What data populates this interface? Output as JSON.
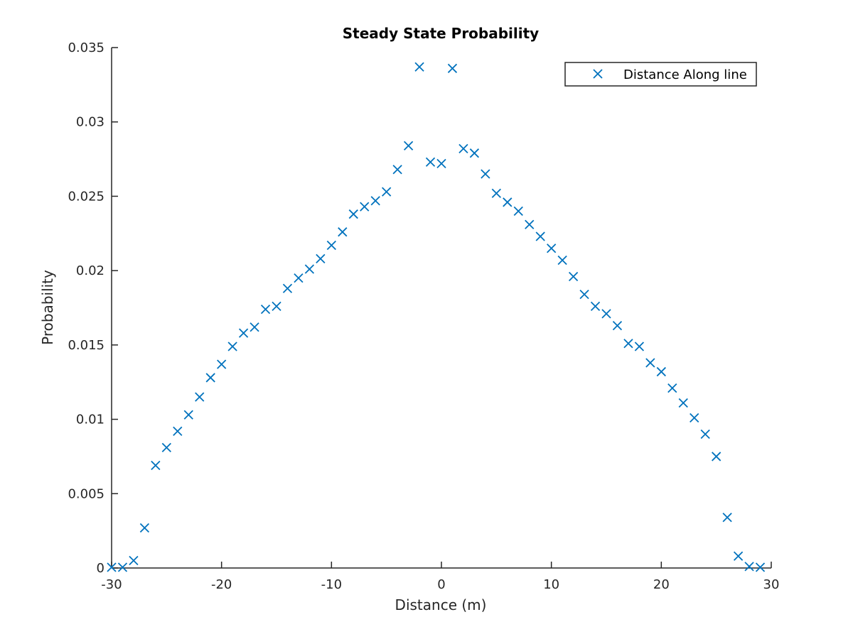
{
  "chart_data": {
    "type": "scatter",
    "title": "Steady State Probability",
    "xlabel": "Distance (m)",
    "ylabel": "Probability",
    "xlim": [
      -30,
      30
    ],
    "ylim": [
      0,
      0.035
    ],
    "xticks": [
      -30,
      -20,
      -10,
      0,
      10,
      20,
      30
    ],
    "xtick_labels": [
      "-30",
      "-20",
      "-10",
      "0",
      "10",
      "20",
      "30"
    ],
    "yticks": [
      0,
      0.005,
      0.01,
      0.015,
      0.02,
      0.025,
      0.03,
      0.035
    ],
    "ytick_labels": [
      "0",
      "0.005",
      "0.01",
      "0.015",
      "0.02",
      "0.025",
      "0.03",
      "0.035"
    ],
    "grid": false,
    "legend_position": "top-right",
    "marker": "x",
    "color": "#0072BD",
    "series": [
      {
        "name": "Distance Along line",
        "x": [
          -30,
          -29,
          -28,
          -27,
          -26,
          -25,
          -24,
          -23,
          -22,
          -21,
          -20,
          -19,
          -18,
          -17,
          -16,
          -15,
          -14,
          -13,
          -12,
          -11,
          -10,
          -9,
          -8,
          -7,
          -6,
          -5,
          -4,
          -3,
          -2,
          -1,
          0,
          1,
          2,
          3,
          4,
          5,
          6,
          7,
          8,
          9,
          10,
          11,
          12,
          13,
          14,
          15,
          16,
          17,
          18,
          19,
          20,
          21,
          22,
          23,
          24,
          25,
          26,
          27,
          28,
          29
        ],
        "y": [
          5e-05,
          5e-05,
          0.0005,
          0.0027,
          0.0069,
          0.0081,
          0.0092,
          0.0103,
          0.0115,
          0.0128,
          0.0137,
          0.0149,
          0.0158,
          0.0162,
          0.0174,
          0.0176,
          0.0188,
          0.0195,
          0.0201,
          0.0208,
          0.0217,
          0.0226,
          0.0238,
          0.0243,
          0.0247,
          0.0253,
          0.0268,
          0.0284,
          0.0337,
          0.0273,
          0.0272,
          0.0336,
          0.0282,
          0.0279,
          0.0265,
          0.0252,
          0.0246,
          0.024,
          0.0231,
          0.0223,
          0.0215,
          0.0207,
          0.0196,
          0.0184,
          0.0176,
          0.0171,
          0.0163,
          0.0151,
          0.0149,
          0.0138,
          0.0132,
          0.0121,
          0.0111,
          0.0101,
          0.009,
          0.0075,
          0.0034,
          0.0008,
          0.0001,
          5e-05
        ]
      }
    ]
  }
}
